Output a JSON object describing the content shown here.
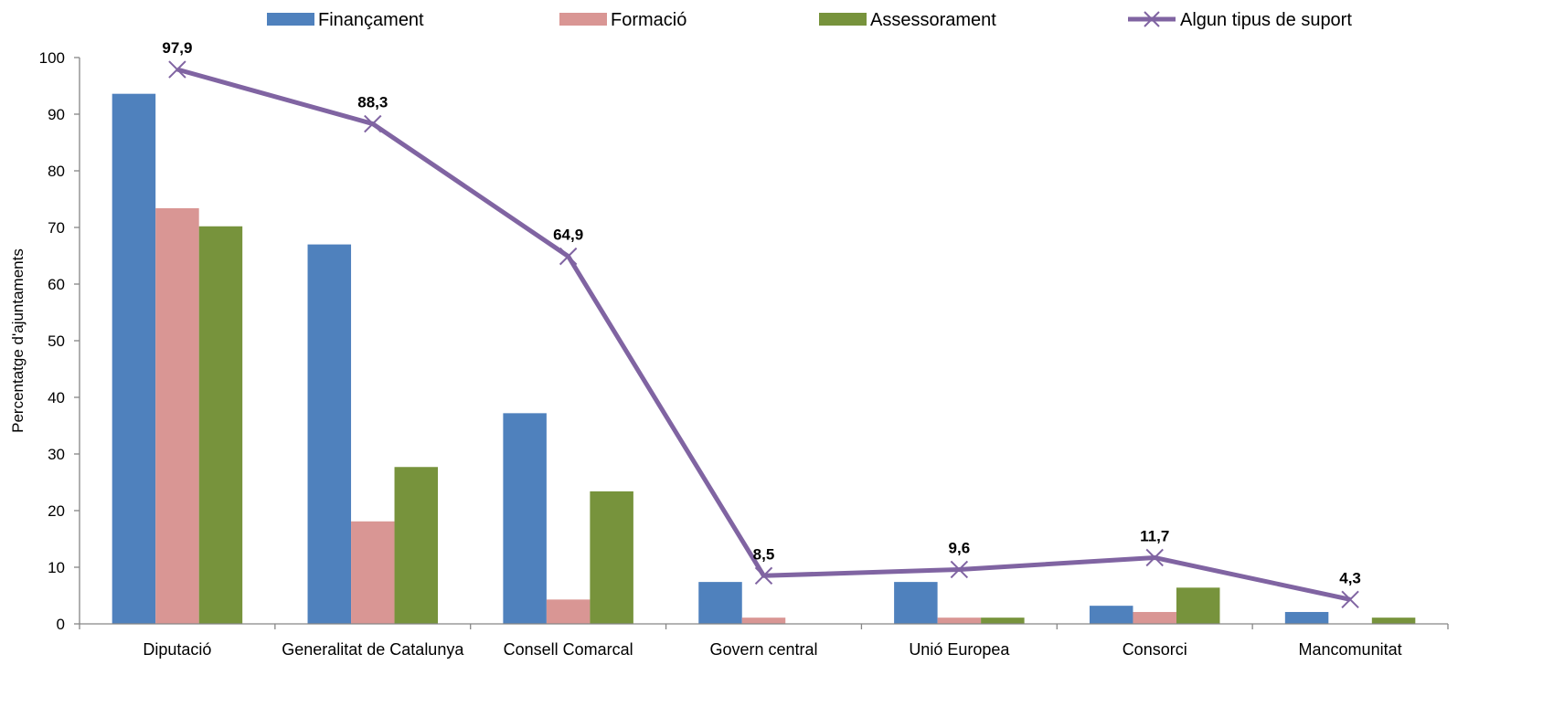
{
  "chart_data": {
    "type": "bar",
    "categories": [
      "Diputació",
      "Generalitat de Catalunya",
      "Consell Comarcal",
      "Govern central",
      "Unió Europea",
      "Consorci",
      "Mancomunitat"
    ],
    "series": [
      {
        "name": "Finançament",
        "type": "bar",
        "color": "#4F81BD",
        "values": [
          93.6,
          67.0,
          37.2,
          7.4,
          7.4,
          3.2,
          2.1
        ]
      },
      {
        "name": "Formació",
        "type": "bar",
        "color": "#D99694",
        "values": [
          73.4,
          18.1,
          4.3,
          1.1,
          1.1,
          2.1,
          0
        ]
      },
      {
        "name": "Assessorament",
        "type": "bar",
        "color": "#77933C",
        "values": [
          70.2,
          27.7,
          23.4,
          0,
          1.1,
          6.4,
          1.1
        ]
      },
      {
        "name": "Algun tipus de suport",
        "type": "line",
        "color": "#8064A2",
        "values": [
          97.9,
          88.3,
          64.9,
          8.5,
          9.6,
          11.7,
          4.3
        ],
        "data_labels": [
          "97,9",
          "88,3",
          "64,9",
          "8,5",
          "9,6",
          "11,7",
          "4,3"
        ]
      }
    ],
    "title": "",
    "xlabel": "",
    "ylabel": "Percentatge d'ajuntaments",
    "ylim": [
      0,
      100
    ],
    "yticks": [
      0,
      10,
      20,
      30,
      40,
      50,
      60,
      70,
      80,
      90,
      100
    ],
    "grid": false,
    "legend_position": "top"
  }
}
